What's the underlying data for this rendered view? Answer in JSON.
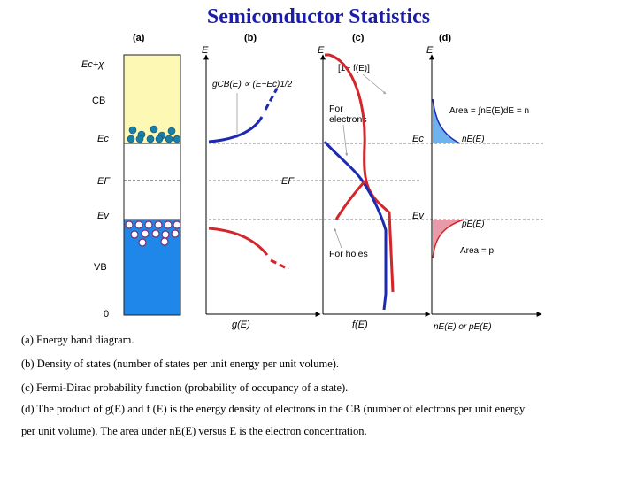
{
  "title": "Semiconductor Statistics",
  "panels": {
    "a": {
      "label": "(a)",
      "levels": {
        "ec_chi": "Ec+χ",
        "cb": "CB",
        "ec": "Ec",
        "ef": "EF",
        "ev": "Ev",
        "vb": "VB",
        "zero": "0"
      }
    },
    "b": {
      "label": "(b)",
      "y_axis": "E",
      "x_axis": "g(E)",
      "formula": "gCB(E) ∝ (E−Ec)1/2"
    },
    "c": {
      "label": "(c)",
      "y_axis": "E",
      "x_axis": "f(E)",
      "curve_label": "[1− f(E)]",
      "for_electrons": [
        "For",
        "electrons"
      ],
      "for_holes": "For holes",
      "ec": "Ec",
      "ef": "EF",
      "ev": "Ev"
    },
    "d": {
      "label": "(d)",
      "y_axis": "E",
      "x_axis": "nE(E) or pE(E)",
      "area_n": "Area = ∫nE(E)dE = n",
      "ne": "nE(E)",
      "pe": "pE(E)",
      "area_p": "Area = p"
    }
  },
  "captions": [
    "(a) Energy band diagram.",
    "(b) Density of states (number of states per unit energy per unit volume).",
    "(c) Fermi-Dirac probability function (probability of occupancy of a state).",
    "(d) The product of g(E) and f (E) is the energy density of electrons in the CB (number of electrons per unit energy",
    "per unit volume). The area under nE(E) versus E is the electron concentration."
  ],
  "colors": {
    "title": "#1c1caa",
    "cb_fill": "#fdf9b5",
    "vb_fill": "#1f86ea",
    "electron": "#1a7fa8",
    "hole": "#ffffff",
    "hole_edge": "#7a2f70",
    "red_curve": "#d3252b",
    "blue_curve": "#1d2ab0",
    "shade_blue": "#6fb3ee",
    "shade_red": "#e89aa8"
  }
}
